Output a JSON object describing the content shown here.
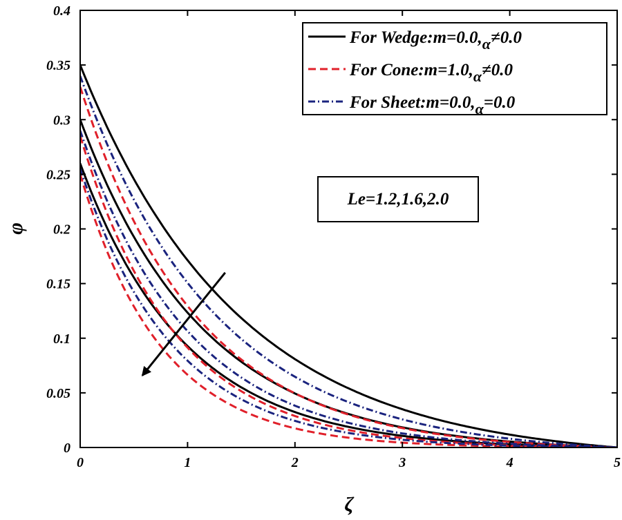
{
  "chart_data": {
    "type": "line",
    "xlabel": "ζ",
    "ylabel": "φ",
    "xlim": [
      0,
      5
    ],
    "ylim": [
      0,
      0.4
    ],
    "x_ticks": [
      0,
      1,
      2,
      3,
      4,
      5
    ],
    "y_ticks": [
      0,
      0.05,
      0.1,
      0.15,
      0.2,
      0.25,
      0.3,
      0.35,
      0.4
    ],
    "x_tick_labels": [
      "0",
      "1",
      "2",
      "3",
      "4",
      "5"
    ],
    "y_tick_labels": [
      "0",
      "0.05",
      "0.1",
      "0.15",
      "0.2",
      "0.25",
      "0.3",
      "0.35",
      "0.4"
    ],
    "grid": false,
    "legend_position": "top-right",
    "legend": [
      {
        "key": "wedge",
        "prefix": "For Wedge:m=0.0,",
        "alpha": "α",
        "suffix": "≠0.0",
        "color": "#000000",
        "style": "solid"
      },
      {
        "key": "cone",
        "prefix": "For Cone:m=1.0,",
        "alpha": "α",
        "suffix": "≠0.0",
        "color": "#e0202a",
        "style": "dashed"
      },
      {
        "key": "sheet",
        "prefix": "For Sheet:m=0.0,",
        "alpha": "α",
        "suffix": "=0.0",
        "color": "#1a237e",
        "style": "dashdot"
      }
    ],
    "annotation": {
      "text": "Le=1.2,1.6,2.0",
      "arrow_from": [
        1.35,
        0.16
      ],
      "arrow_to": [
        0.58,
        0.066
      ]
    },
    "series": [
      {
        "name": "For Wedge, Le=1.2",
        "group": "wedge",
        "style": "solid",
        "color": "#000000",
        "y0": 0.35,
        "k": 0.68
      },
      {
        "name": "For Wedge, Le=1.6",
        "group": "wedge",
        "style": "solid",
        "color": "#000000",
        "y0": 0.3,
        "k": 0.87
      },
      {
        "name": "For Wedge, Le=2.0",
        "group": "wedge",
        "style": "solid",
        "color": "#000000",
        "y0": 0.26,
        "k": 1.02
      },
      {
        "name": "For Cone, Le=1.2",
        "group": "cone",
        "style": "dashed",
        "color": "#e0202a",
        "y0": 0.33,
        "k": 0.92
      },
      {
        "name": "For Cone, Le=1.6",
        "group": "cone",
        "style": "dashed",
        "color": "#e0202a",
        "y0": 0.285,
        "k": 1.13
      },
      {
        "name": "For Cone, Le=2.0",
        "group": "cone",
        "style": "dashed",
        "color": "#e0202a",
        "y0": 0.25,
        "k": 1.32
      },
      {
        "name": "For Sheet, Le=1.2",
        "group": "sheet",
        "style": "dashdot",
        "color": "#1a237e",
        "y0": 0.34,
        "k": 0.79
      },
      {
        "name": "For Sheet, Le=1.6",
        "group": "sheet",
        "style": "dashdot",
        "color": "#1a237e",
        "y0": 0.29,
        "k": 0.99
      },
      {
        "name": "For Sheet, Le=2.0",
        "group": "sheet",
        "style": "dashdot",
        "color": "#1a237e",
        "y0": 0.255,
        "k": 1.16
      }
    ]
  }
}
